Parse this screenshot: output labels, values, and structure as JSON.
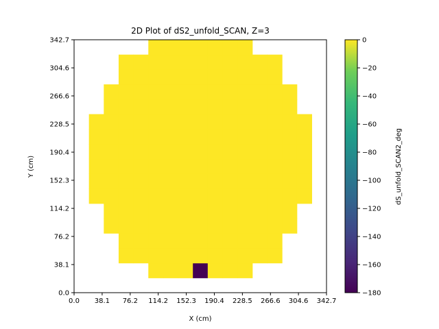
{
  "chart_data": {
    "type": "heatmap",
    "title": "2D Plot of dS2_unfold_SCAN, Z=3",
    "xlabel": "X (cm)",
    "ylabel": "Y (cm)",
    "xlim": [
      0.0,
      342.7
    ],
    "ylim": [
      0.0,
      342.7
    ],
    "x_ticks": [
      0.0,
      38.1,
      76.2,
      114.2,
      152.3,
      190.4,
      228.5,
      266.6,
      304.6,
      342.7
    ],
    "x_tick_labels": [
      "0.0",
      "38.1",
      "76.2",
      "114.2",
      "152.3",
      "190.4",
      "228.5",
      "266.6",
      "304.6",
      "342.7"
    ],
    "y_ticks": [
      0.0,
      38.1,
      76.2,
      114.2,
      152.3,
      190.4,
      228.5,
      266.6,
      304.6,
      342.7
    ],
    "y_tick_labels": [
      "0.0",
      "38.1",
      "76.2",
      "114.2",
      "152.3",
      "190.4",
      "228.5",
      "266.6",
      "304.6",
      "342.7"
    ],
    "cell_size": 20.16,
    "grid_cols": 17,
    "grid_rows": 17,
    "row_spans": [
      {
        "row": 1,
        "col_start": 5,
        "col_end": 11
      },
      {
        "row": 2,
        "col_start": 3,
        "col_end": 13
      },
      {
        "row": 3,
        "col_start": 3,
        "col_end": 13
      },
      {
        "row": 4,
        "col_start": 2,
        "col_end": 14
      },
      {
        "row": 5,
        "col_start": 2,
        "col_end": 14
      },
      {
        "row": 6,
        "col_start": 1,
        "col_end": 15
      },
      {
        "row": 7,
        "col_start": 1,
        "col_end": 15
      },
      {
        "row": 8,
        "col_start": 1,
        "col_end": 15
      },
      {
        "row": 9,
        "col_start": 1,
        "col_end": 15
      },
      {
        "row": 10,
        "col_start": 1,
        "col_end": 15
      },
      {
        "row": 11,
        "col_start": 1,
        "col_end": 15
      },
      {
        "row": 12,
        "col_start": 2,
        "col_end": 14
      },
      {
        "row": 13,
        "col_start": 2,
        "col_end": 14
      },
      {
        "row": 14,
        "col_start": 3,
        "col_end": 13
      },
      {
        "row": 15,
        "col_start": 3,
        "col_end": 13
      },
      {
        "row": 16,
        "col_start": 5,
        "col_end": 11
      }
    ],
    "default_value": 0,
    "special_cells": [
      {
        "row": 1,
        "col": 8,
        "value": -180
      }
    ],
    "colorbar": {
      "label": "dS_unfold_SCAN2_deg",
      "range": [
        -180,
        0
      ],
      "ticks": [
        0,
        -20,
        -40,
        -60,
        -80,
        -100,
        -120,
        -140,
        -160,
        -180
      ],
      "tick_labels": [
        "0",
        "−20",
        "−40",
        "−60",
        "−80",
        "−100",
        "−120",
        "−140",
        "−160",
        "−180"
      ],
      "colormap": "viridis"
    },
    "grid": false
  }
}
